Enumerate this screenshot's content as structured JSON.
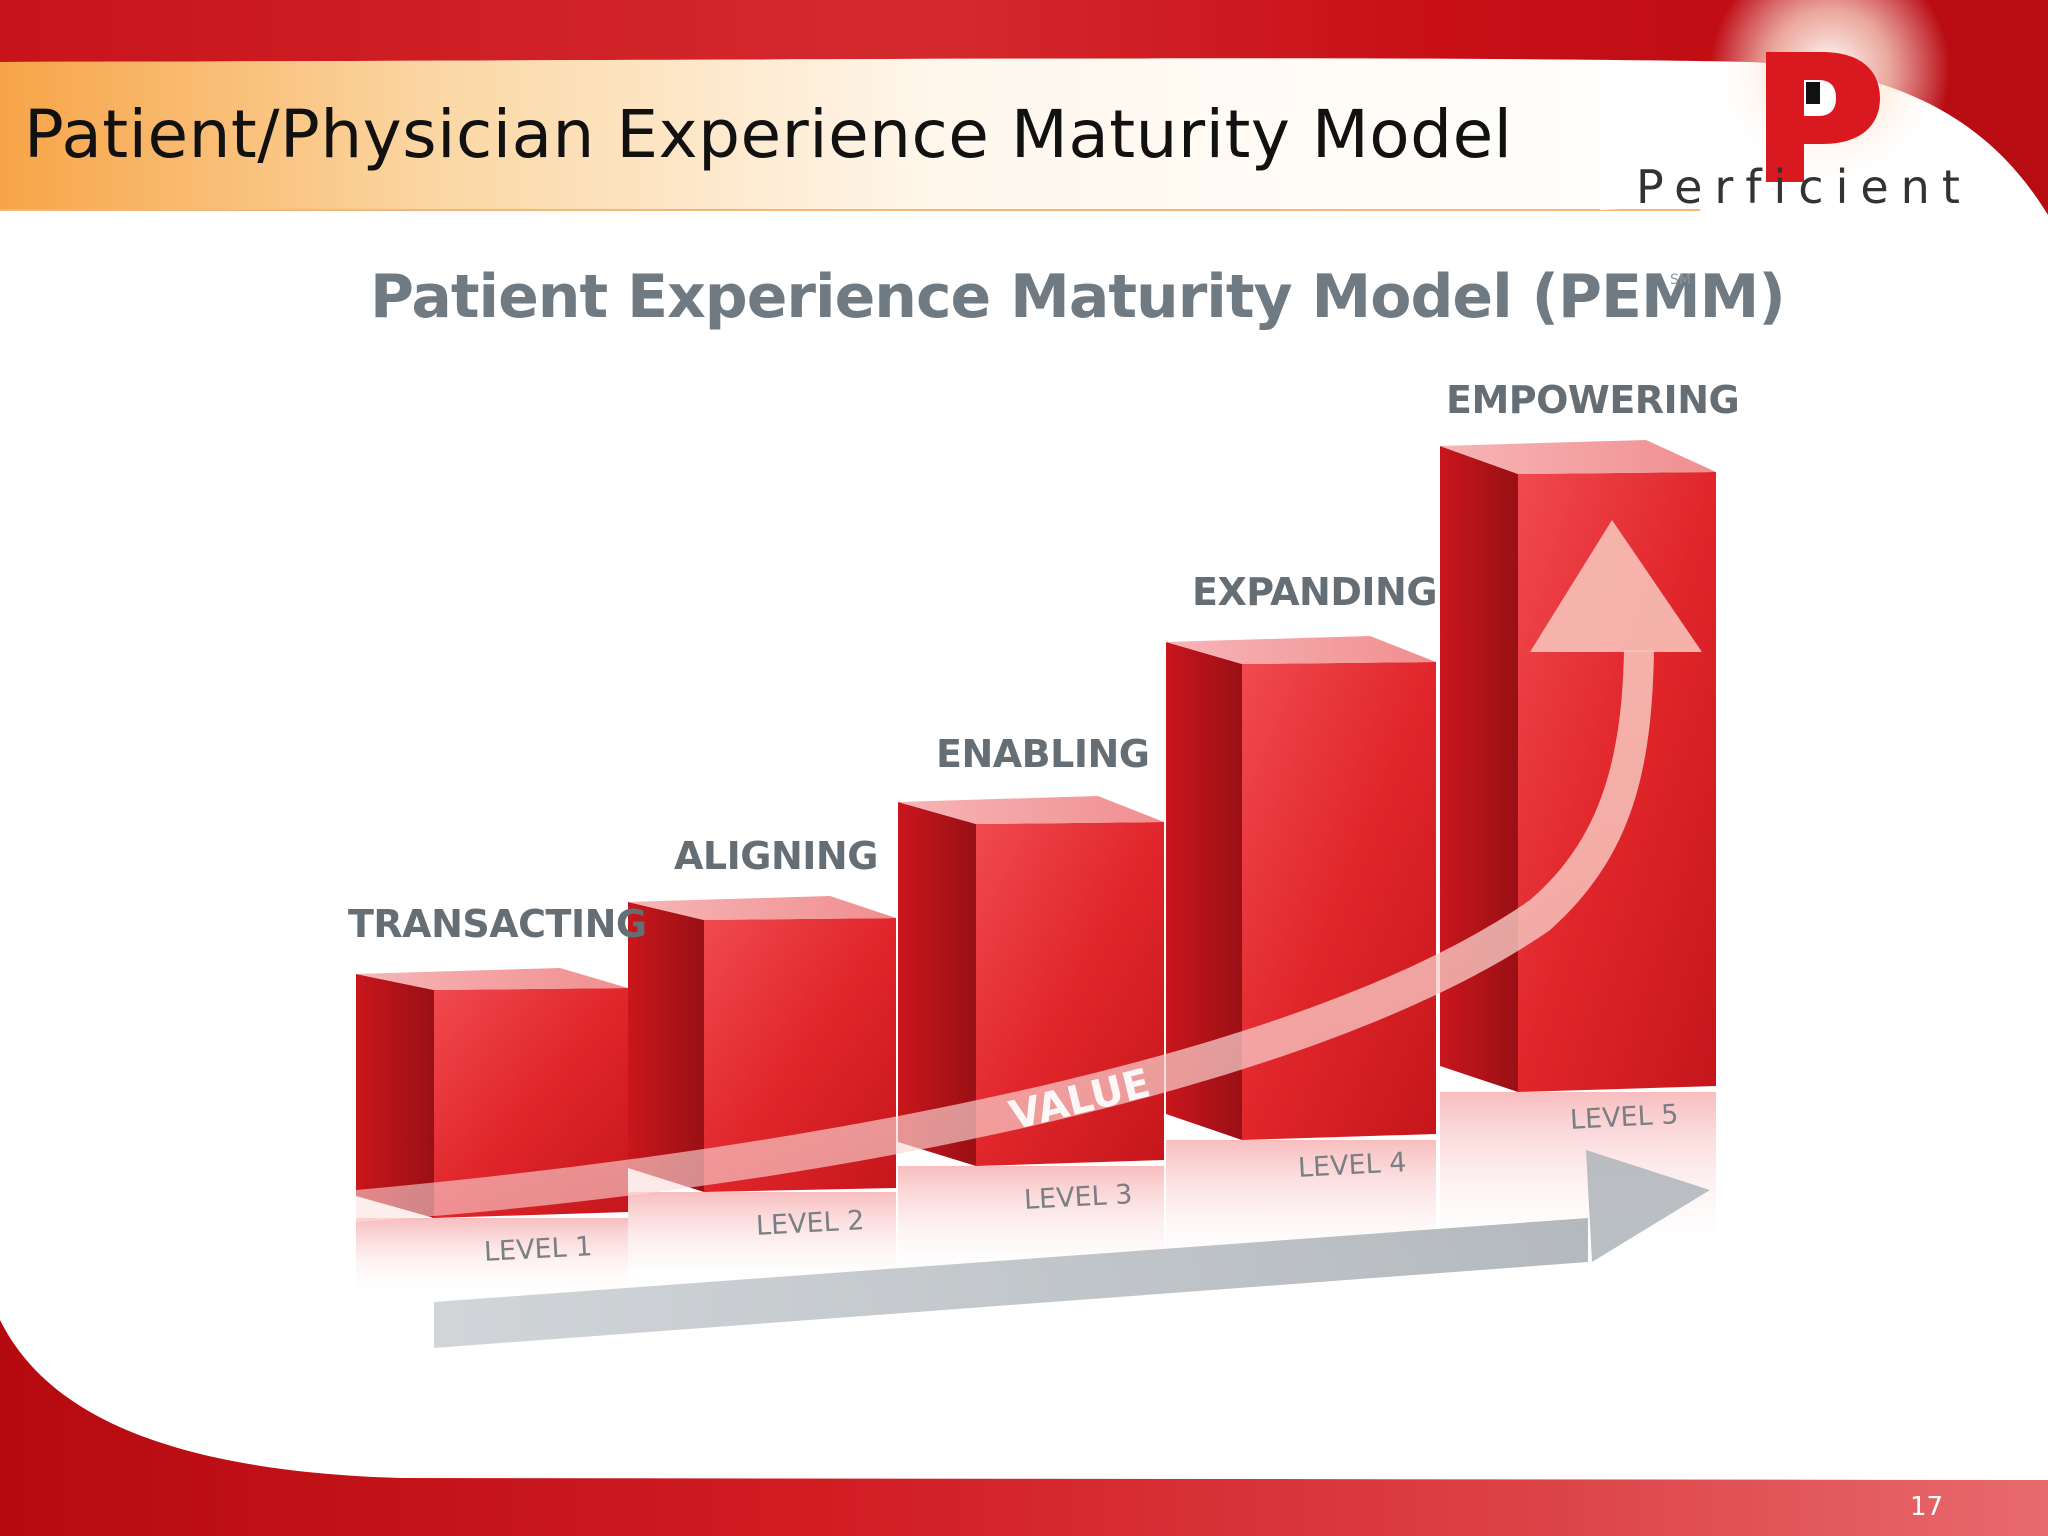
{
  "slide": {
    "title": "Patient/Physician Experience Maturity Model",
    "page_number": "17"
  },
  "logo": {
    "icon": "perficient-p-logo-icon",
    "wordmark": "Perficient"
  },
  "diagram": {
    "title": "Patient Experience Maturity Model (PEMM)",
    "service_mark": "SM",
    "value_label": "VALUE",
    "stages": [
      {
        "name": "TRANSACTING",
        "level": "LEVEL 1"
      },
      {
        "name": "ALIGNING",
        "level": "LEVEL 2"
      },
      {
        "name": "ENABLING",
        "level": "LEVEL 3"
      },
      {
        "name": "EXPANDING",
        "level": "LEVEL 4"
      },
      {
        "name": "EMPOWERING",
        "level": "LEVEL 5"
      }
    ]
  },
  "colors": {
    "accent_red": "#d9191f",
    "title_bar_orange": "#f7a64a",
    "stage_text_gray": "#656e75"
  }
}
